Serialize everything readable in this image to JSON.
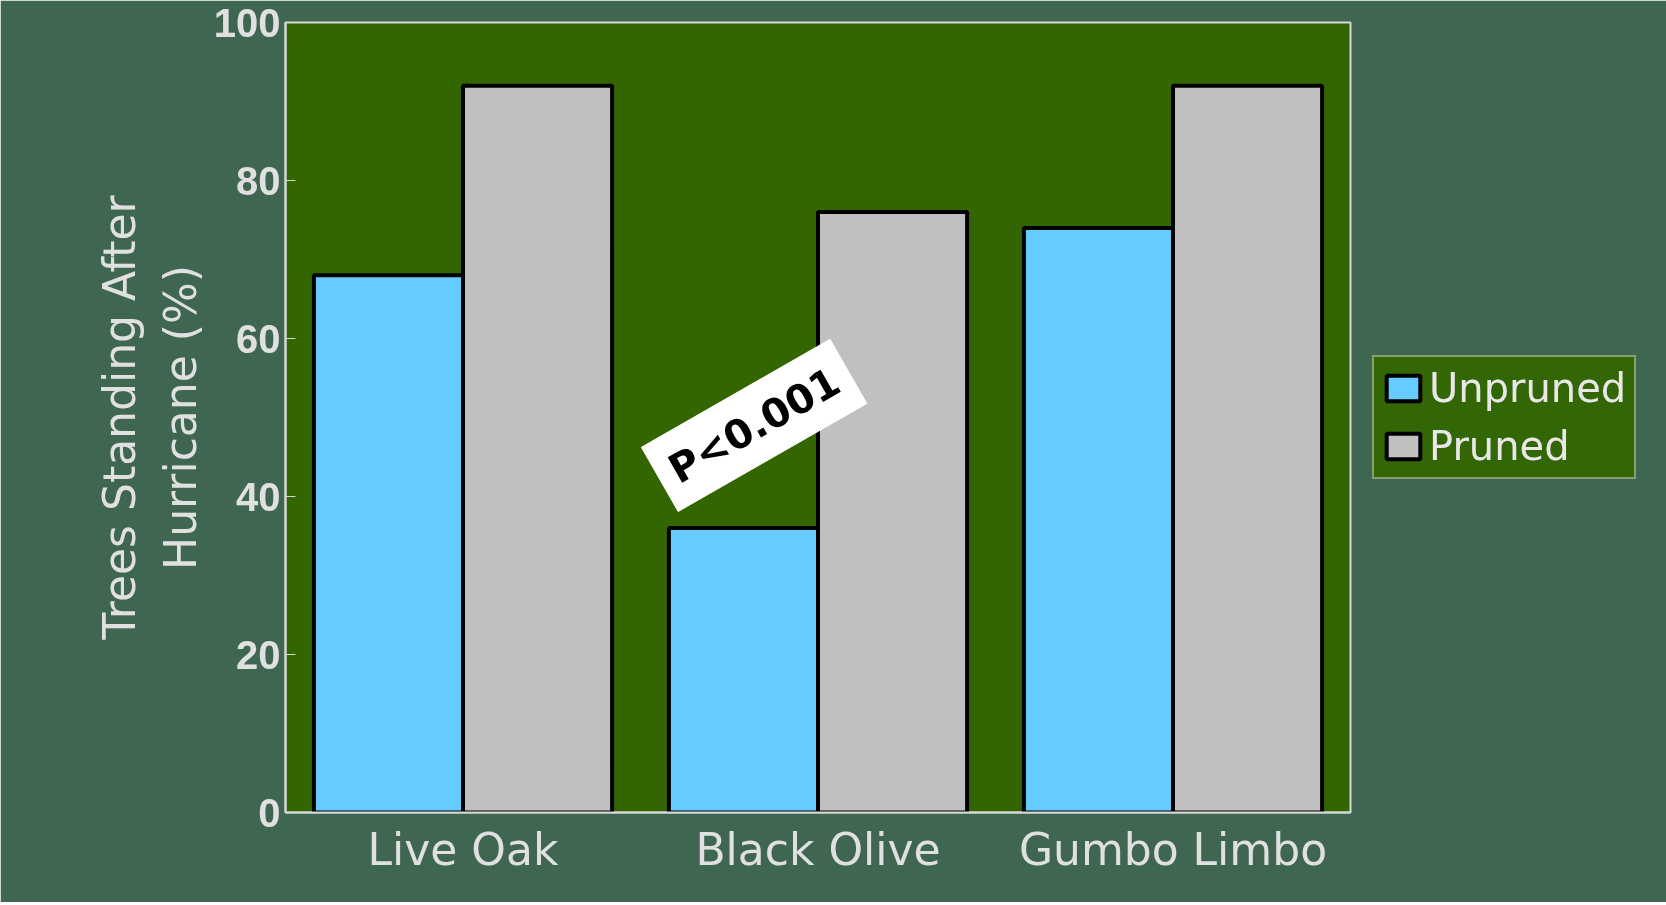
{
  "chart_data": {
    "type": "bar",
    "ylabel": "Trees Standing After\nHurricane (%)",
    "categories": [
      "Live Oak",
      "Black Olive",
      "Gumbo Limbo"
    ],
    "series": [
      {
        "name": "Unpruned",
        "color": "#66ccff",
        "values": [
          68,
          36,
          74
        ]
      },
      {
        "name": "Pruned",
        "color": "#c0c0c0",
        "values": [
          92,
          76,
          92
        ]
      }
    ],
    "ylim": [
      0,
      100
    ],
    "yticks": [
      0,
      20,
      40,
      60,
      80,
      100
    ],
    "grid": false,
    "legend": "right",
    "annotations": [
      "P<0.001"
    ]
  }
}
